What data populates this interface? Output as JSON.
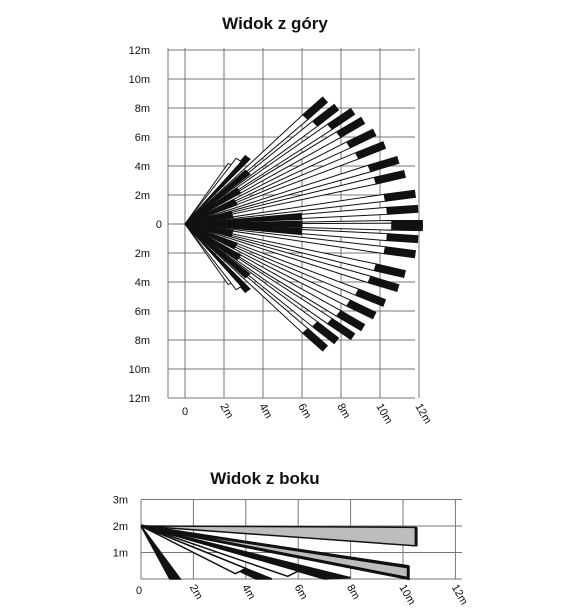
{
  "top_view": {
    "title": "Widok z góry",
    "y_labels": [
      "12m",
      "10m",
      "8m",
      "6m",
      "4m",
      "2m",
      "0",
      "2m",
      "4m",
      "6m",
      "8m",
      "10m",
      "12m"
    ],
    "x_labels": [
      "0",
      "2m",
      "4m",
      "6m",
      "8m",
      "10m",
      "12m"
    ]
  },
  "side_view": {
    "title": "Widok z boku",
    "y_labels": [
      "3m",
      "2m",
      "1m"
    ],
    "x_labels": [
      "0",
      "2m",
      "4m",
      "6m",
      "8m",
      "10m",
      "12m"
    ]
  },
  "colors": {
    "ink": "#111111",
    "grid": "#777777",
    "fill_gray": "#bdbdbd",
    "white": "#ffffff"
  }
}
